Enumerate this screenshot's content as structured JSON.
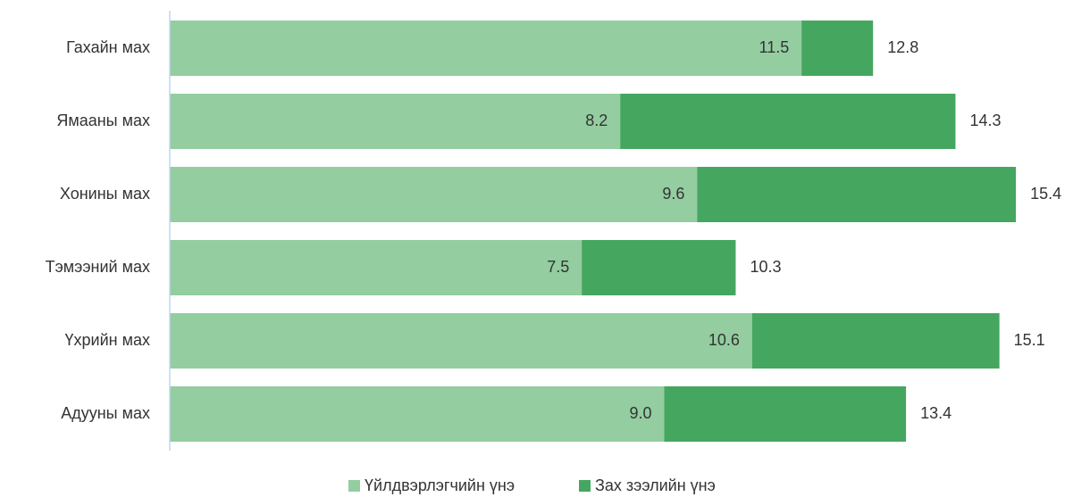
{
  "chart_data": {
    "type": "bar",
    "orientation": "horizontal",
    "overlap": true,
    "categories": [
      "Гахайн мах",
      "Ямааны мах",
      "Хонины мах",
      "Тэмээний мах",
      "Үхрийн мах",
      "Адууны мах"
    ],
    "series": [
      {
        "name": "Үйлдвэрлэгчийн үнэ",
        "color": "#93cda0",
        "values": [
          11.5,
          8.2,
          9.6,
          7.5,
          10.6,
          9.0
        ],
        "value_labels": [
          "11.5",
          "8.2",
          "9.6",
          "7.5",
          "10.6",
          "9.0"
        ]
      },
      {
        "name": "Зах зээлийн үнэ",
        "color": "#45a660",
        "values": [
          12.8,
          14.3,
          15.4,
          10.3,
          15.1,
          13.4
        ],
        "value_labels": [
          "12.8",
          "14.3",
          "15.4",
          "10.3",
          "15.1",
          "13.4"
        ]
      }
    ],
    "xlim": [
      0,
      16
    ],
    "legend": "bottom"
  }
}
